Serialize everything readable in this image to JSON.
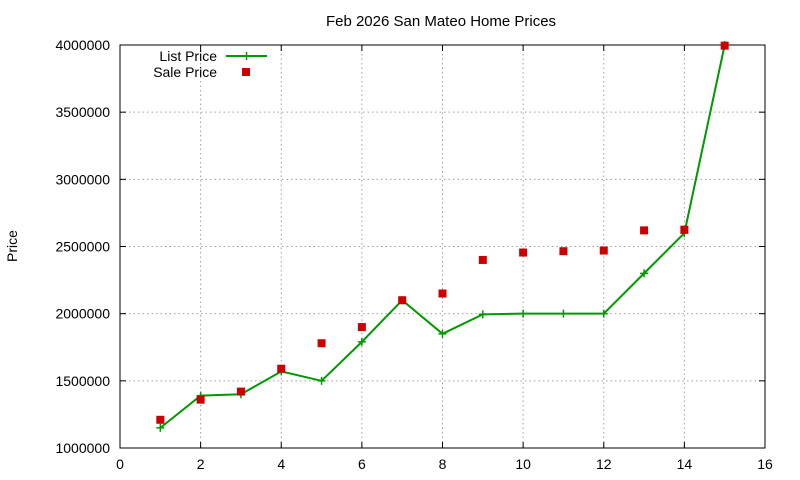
{
  "chart_data": {
    "type": "line",
    "title": "Feb 2026 San Mateo Home Prices",
    "xlabel": "",
    "ylabel": "Price",
    "xlim": [
      0,
      16
    ],
    "ylim": [
      1000000,
      4000000
    ],
    "xticks": [
      "0",
      "2",
      "4",
      "6",
      "8",
      "10",
      "12",
      "14",
      "16"
    ],
    "yticks": [
      "1000000",
      "1500000",
      "2000000",
      "2500000",
      "3000000",
      "3500000",
      "4000000"
    ],
    "grid": true,
    "legend_position": "top-left",
    "x": [
      1,
      2,
      3,
      4,
      5,
      6,
      7,
      8,
      9,
      10,
      11,
      12,
      13,
      14,
      15
    ],
    "series": [
      {
        "name": "List Price",
        "style": "line-plus",
        "color": "#009900",
        "values": [
          1150000,
          1390000,
          1400000,
          1570000,
          1500000,
          1790000,
          2100000,
          1850000,
          1995000,
          2000000,
          2000000,
          2000000,
          2300000,
          2600000,
          4000000
        ]
      },
      {
        "name": "Sale Price",
        "style": "square-points",
        "color": "#cc0000",
        "values": [
          1210000,
          1360000,
          1420000,
          1590000,
          1780000,
          1900000,
          2100000,
          2150000,
          2400000,
          2455000,
          2465000,
          2470000,
          2620000,
          2625000,
          3995000
        ]
      }
    ]
  }
}
